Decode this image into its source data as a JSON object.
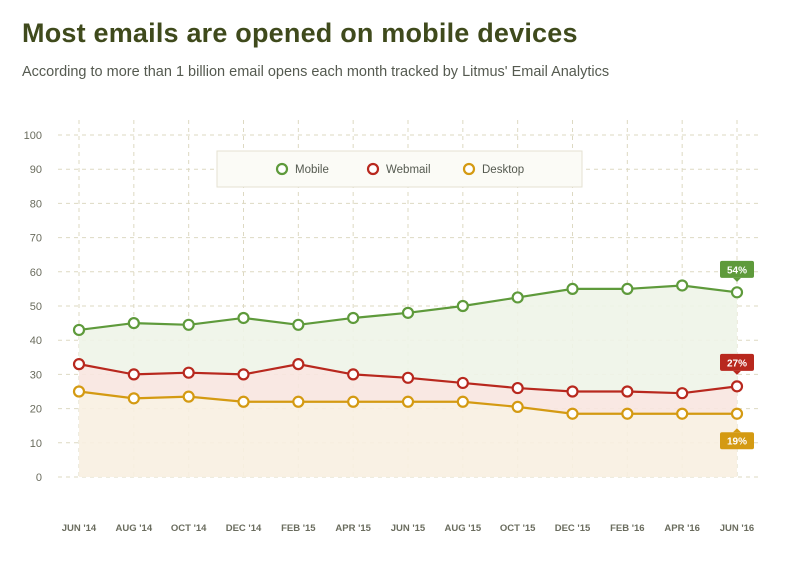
{
  "header": {
    "title": "Most emails are opened on mobile devices",
    "subtitle": "According to more than 1 billion email opens each month tracked by Litmus' Email Analytics"
  },
  "colors": {
    "mobile": "#5e9a3b",
    "webmail": "#b8281e",
    "desktop": "#d49a12",
    "mobile_fill": "#eef4e8",
    "webmail_fill": "#f8e5e0",
    "desktop_fill": "#f8f0e1",
    "grid": "#ddd9c2",
    "axis_text": "#6a6c5e"
  },
  "chart_data": {
    "type": "line",
    "title": "Most emails are opened on mobile devices",
    "subtitle": "According to more than 1 billion email opens each month tracked by Litmus' Email Analytics",
    "xlabel": "",
    "ylabel": "",
    "ylim": [
      0,
      100
    ],
    "yticks": [
      0,
      10,
      20,
      30,
      40,
      50,
      60,
      70,
      80,
      90,
      100
    ],
    "categories": [
      "JUN '14",
      "AUG '14",
      "OCT '14",
      "DEC '14",
      "FEB '15",
      "APR '15",
      "JUN '15",
      "AUG '15",
      "OCT '15",
      "DEC '15",
      "FEB '16",
      "APR '16",
      "JUN '16"
    ],
    "series": [
      {
        "name": "Mobile",
        "key": "mobile",
        "values": [
          43,
          45,
          44.5,
          46.5,
          44.5,
          46.5,
          48,
          50,
          52.5,
          55,
          55,
          56,
          54
        ],
        "end_label": "54%"
      },
      {
        "name": "Webmail",
        "key": "webmail",
        "values": [
          33,
          30,
          30.5,
          30,
          33,
          30,
          29,
          27.5,
          26,
          25,
          25,
          24.5,
          26.5
        ],
        "end_label": "27%"
      },
      {
        "name": "Desktop",
        "key": "desktop",
        "values": [
          25,
          23,
          23.5,
          22,
          22,
          22,
          22,
          22,
          20.5,
          18.5,
          18.5,
          18.5,
          18.5
        ],
        "end_label": "19%"
      }
    ],
    "grid": true,
    "legend": "top-center"
  }
}
